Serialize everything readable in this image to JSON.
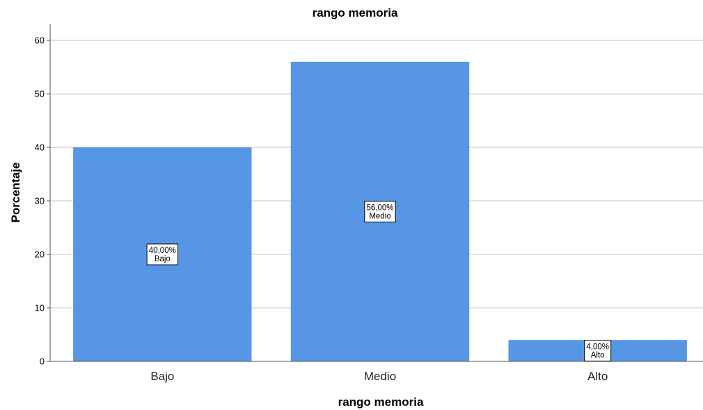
{
  "chart_data": {
    "type": "bar",
    "title": "rango memoria",
    "xlabel": "rango memoria",
    "ylabel": "Porcentaje",
    "categories": [
      "Bajo",
      "Medio",
      "Alto"
    ],
    "values": [
      40,
      56,
      4
    ],
    "data_labels": [
      {
        "value": "40,00%",
        "category": "Bajo"
      },
      {
        "value": "56,00%",
        "category": "Medio"
      },
      {
        "value": "4,00%",
        "category": "Alto"
      }
    ],
    "ylim": [
      0,
      63
    ],
    "yticks": [
      0,
      10,
      20,
      30,
      40,
      50,
      60
    ],
    "grid": true,
    "legend": "none",
    "colors": {
      "bar": "#5696e4",
      "grid": "#c8c8c8",
      "axis": "#555555"
    }
  }
}
